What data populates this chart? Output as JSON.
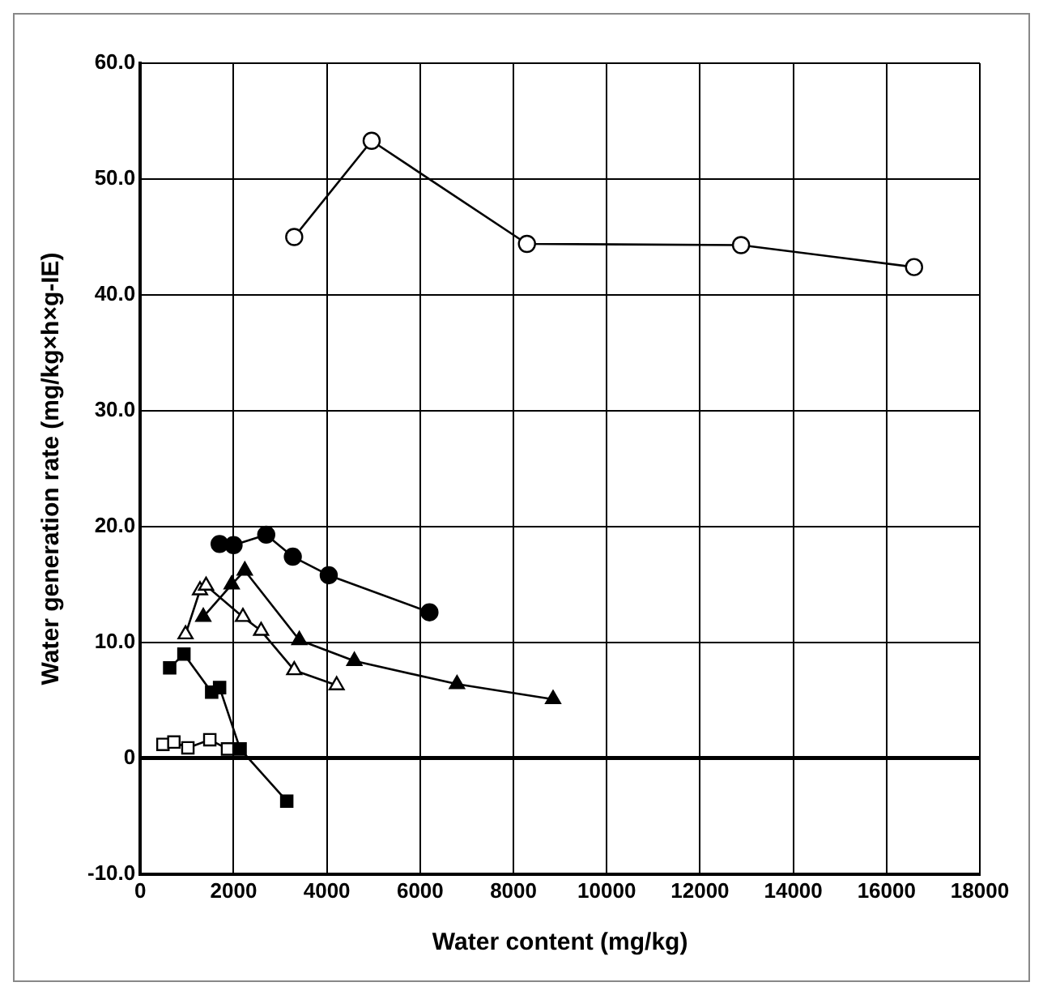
{
  "chart_data": {
    "type": "line",
    "xlabel": "Water content (mg/kg)",
    "ylabel": "Water generation rate (mg/kg×h×g-IE)",
    "xlim": [
      0,
      18000
    ],
    "xticks": [
      0,
      2000,
      4000,
      6000,
      8000,
      10000,
      12000,
      14000,
      16000,
      18000
    ],
    "ylim": [
      -10,
      60
    ],
    "yticks": [
      {
        "value": -10,
        "label": "-10.0"
      },
      {
        "value": 0,
        "label": "0"
      },
      {
        "value": 10,
        "label": "10.0"
      },
      {
        "value": 20,
        "label": "20.0"
      },
      {
        "value": 30,
        "label": "30.0"
      },
      {
        "value": 40,
        "label": "40.0"
      },
      {
        "value": 50,
        "label": "50.0"
      },
      {
        "value": 60,
        "label": "60.0"
      }
    ],
    "grid": true,
    "legend": false,
    "line_style": "solid",
    "series": [
      {
        "color": "#ffffff",
        "marker": "circle",
        "x": [
          3300,
          4960,
          8290,
          12880,
          16590
        ],
        "values": [
          45,
          53.3,
          44.4,
          44.3,
          42.4
        ]
      },
      {
        "color": "#000000",
        "marker": "circle",
        "x": [
          1700,
          2000,
          2700,
          3270,
          4040,
          6200
        ],
        "values": [
          18.5,
          18.4,
          19.3,
          17.4,
          15.8,
          12.6
        ]
      },
      {
        "color": "#000000",
        "marker": "triangle",
        "x": [
          1350,
          1960,
          2240,
          3410,
          4590,
          6790,
          8850
        ],
        "values": [
          12.2,
          15,
          16.2,
          10.2,
          8.4,
          6.4,
          5.1
        ]
      },
      {
        "color": "#ffffff",
        "marker": "triangle",
        "x": [
          970,
          1280,
          1410,
          2200,
          2590,
          3300,
          4210
        ],
        "values": [
          10.7,
          14.5,
          14.9,
          12.2,
          11,
          7.6,
          6.3
        ]
      },
      {
        "color": "#000000",
        "marker": "square",
        "x": [
          630,
          935,
          1530,
          1700,
          2140,
          3140
        ],
        "values": [
          7.8,
          9,
          5.7,
          6.1,
          0.8,
          -3.7
        ]
      },
      {
        "color": "#ffffff",
        "marker": "square",
        "x": [
          485,
          720,
          1020,
          1490,
          1870
        ],
        "values": [
          1.2,
          1.4,
          0.9,
          1.6,
          0.8
        ]
      }
    ]
  }
}
